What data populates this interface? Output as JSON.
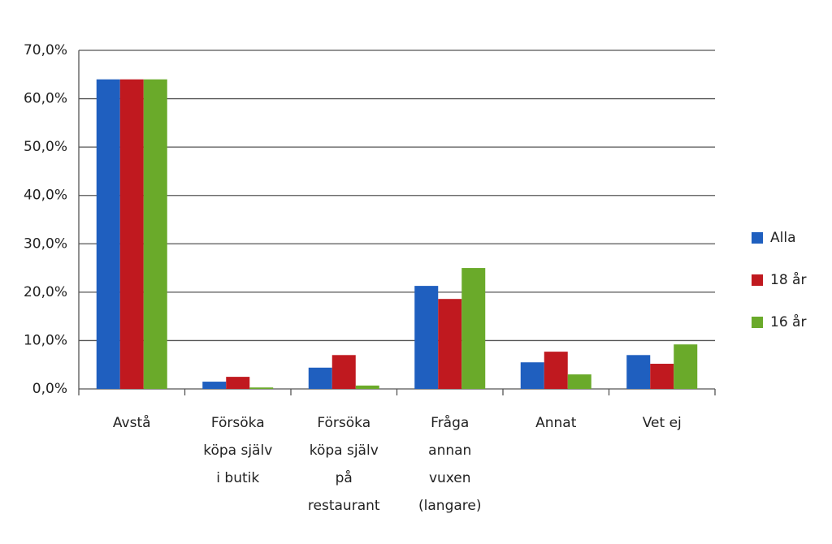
{
  "chart_data": {
    "type": "bar",
    "categories": [
      [
        "Avstå"
      ],
      [
        "Försöka",
        "köpa själv",
        "i butik"
      ],
      [
        "Försöka",
        "köpa själv",
        "på",
        "restaurant"
      ],
      [
        "Fråga",
        "annan",
        "vuxen",
        "(langare)"
      ],
      [
        "Annat"
      ],
      [
        "Vet ej"
      ]
    ],
    "series": [
      {
        "name": "Alla",
        "color": "#1f5fbf",
        "values": [
          64,
          1.5,
          4.4,
          21.3,
          5.5,
          7.0
        ]
      },
      {
        "name": "18 år",
        "color": "#c0191f",
        "values": [
          64,
          2.5,
          7.0,
          18.6,
          7.7,
          5.2
        ]
      },
      {
        "name": "16 år",
        "color": "#6aaa2a",
        "values": [
          64,
          0.3,
          0.7,
          25.0,
          3.0,
          9.2
        ]
      }
    ],
    "ylim": [
      0,
      70
    ],
    "yticks": [
      {
        "value": 0,
        "label": "0,0%"
      },
      {
        "value": 10,
        "label": "10,0%"
      },
      {
        "value": 20,
        "label": "20,0%"
      },
      {
        "value": 30,
        "label": "30,0%"
      },
      {
        "value": 40,
        "label": "40,0%"
      },
      {
        "value": 50,
        "label": "50,0%"
      },
      {
        "value": 60,
        "label": "60,0%"
      },
      {
        "value": 70,
        "label": "70,0%"
      }
    ],
    "grid": true,
    "legend": "right"
  }
}
